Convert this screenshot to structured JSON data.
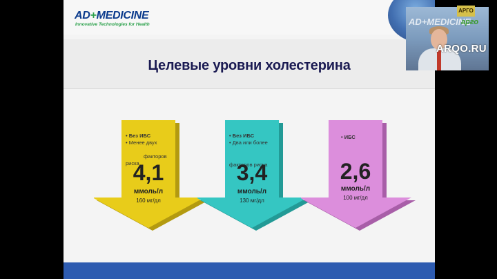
{
  "logo": {
    "brand": "AD",
    "cross": "+",
    "brand2": "MEDICINE",
    "tagline": "Innovative Technologies for Health"
  },
  "slide": {
    "title": "Целевые уровни холестерина",
    "levels": [
      {
        "color": "#e8cc1a",
        "bullets": [
          "• Без ИБС",
          "• Менее двух",
          "факторов",
          "риска"
        ],
        "value": "4,1",
        "unit": "ммоль/л",
        "mg": "160 мг/дл"
      },
      {
        "color": "#35c6c2",
        "bullets": [
          "• Без ИБС",
          "• Два или более",
          "факторов риска"
        ],
        "value": "3,4",
        "unit": "ммоль/л",
        "mg": "130 мг/дл"
      },
      {
        "color": "#dc8edc",
        "bullets": [
          "• ИБС"
        ],
        "value": "2,6",
        "unit": "ммоль/л",
        "mg": "100 мг/дл"
      }
    ]
  },
  "webcam": {
    "overlay_text": "AD+MEDICINE",
    "badge": "АРГО",
    "badge_sub": "арго"
  },
  "watermark": "ARQO.RU"
}
